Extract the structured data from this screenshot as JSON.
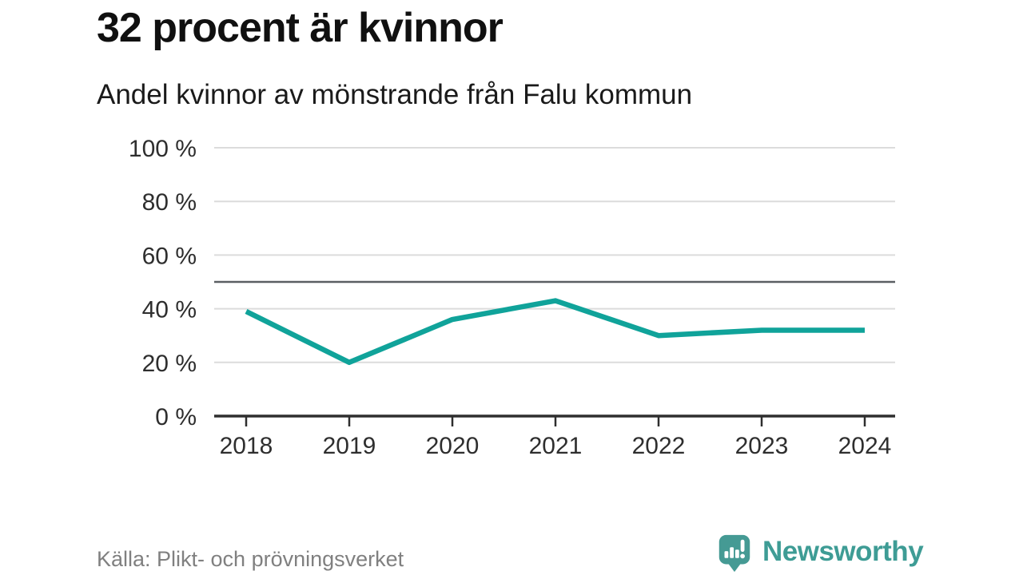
{
  "header": {
    "title": "32 procent är kvinnor",
    "subtitle": "Andel kvinnor av mönstrande från Falu kommun"
  },
  "chart_data": {
    "type": "line",
    "title": "32 procent är kvinnor",
    "subtitle": "Andel kvinnor av mönstrande från Falu kommun",
    "x": [
      2018,
      2019,
      2020,
      2021,
      2022,
      2023,
      2024
    ],
    "xtick_labels": [
      "2018",
      "2019",
      "2020",
      "2021",
      "2022",
      "2023",
      "2024"
    ],
    "series": [
      {
        "name": "Andel kvinnor av mönstrande",
        "values": [
          39,
          20,
          36,
          43,
          30,
          32,
          32
        ]
      }
    ],
    "ylim": [
      0,
      100
    ],
    "yticks": [
      0,
      20,
      40,
      60,
      80,
      100
    ],
    "ytick_labels": [
      "0 %",
      "20 %",
      "40 %",
      "60 %",
      "80 %",
      "100 %"
    ],
    "reference_line": 50,
    "grid": "horizontal",
    "legend": "none",
    "line_color": "#10a39a",
    "reference_color": "#5a5f63",
    "gridline_color": "#dcdcdc",
    "axis_color": "#2e2e2e",
    "tick_label_color": "#2e2e2e"
  },
  "footer": {
    "source": "Källa: Plikt- och prövningsverket",
    "brand": {
      "name": "Newsworthy",
      "color": "#3e9c95",
      "icon": "newsworthy-chart-bubble-icon"
    }
  }
}
